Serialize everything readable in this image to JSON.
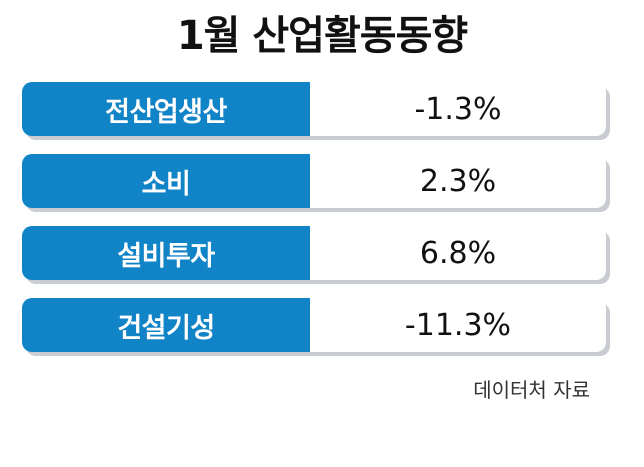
{
  "chart_data": {
    "type": "table",
    "title": "1월 산업활동동향",
    "rows": [
      {
        "label": "전산업생산",
        "value": "-1.3%"
      },
      {
        "label": "소비",
        "value": "2.3%"
      },
      {
        "label": "설비투자",
        "value": "6.8%"
      },
      {
        "label": "건설기성",
        "value": "-11.3%"
      }
    ],
    "source": "데이터처 자료"
  },
  "colors": {
    "label_bg": "#1183c7",
    "label_text": "#ffffff",
    "value_text": "#111111",
    "shadow": "#c9ccd1"
  }
}
